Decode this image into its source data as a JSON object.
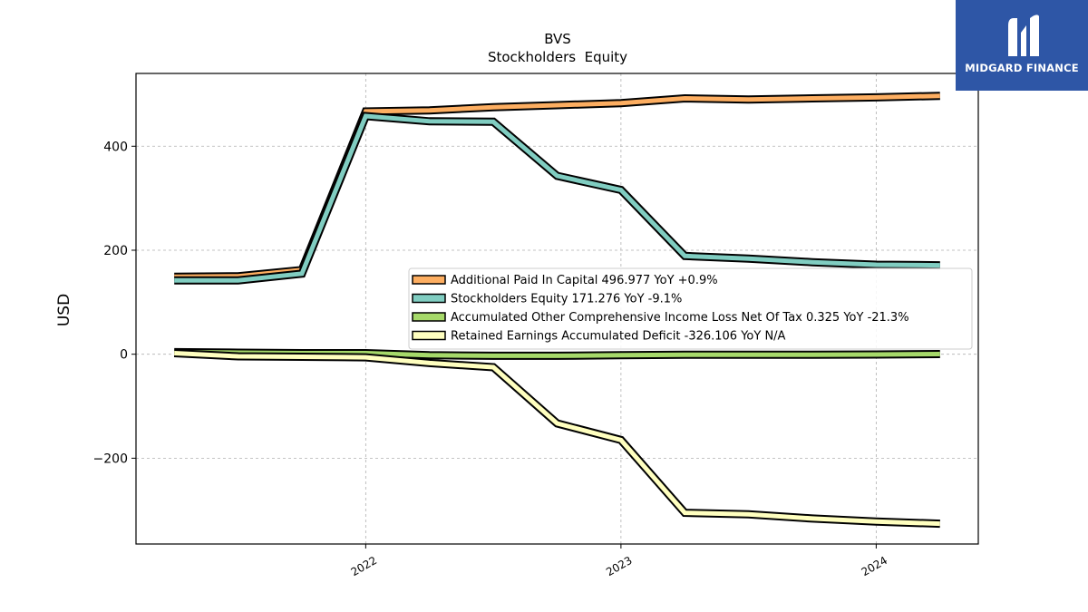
{
  "chart_data": {
    "type": "line",
    "title": "BVS",
    "subtitle": "Stockholders  Equity",
    "ylabel": "USD",
    "xlabel": "",
    "ylim": [
      -365,
      540
    ],
    "xlim": [
      2021.1,
      2024.4
    ],
    "yticks": [
      -200,
      0,
      200,
      400
    ],
    "xticks": [
      "2022",
      "2023",
      "2024"
    ],
    "grid": true,
    "legend_position": "center-right",
    "x": [
      2021.25,
      2021.5,
      2021.75,
      2022.0,
      2022.25,
      2022.5,
      2022.75,
      2023.0,
      2023.25,
      2023.5,
      2023.75,
      2024.0,
      2024.25
    ],
    "series": [
      {
        "name": "Additional Paid In Capital",
        "legend": "Additional Paid In Capital  496.977 YoY +0.9%",
        "color": "#fdae61",
        "values": [
          149,
          150,
          162,
          467,
          469,
          475,
          479,
          483,
          492,
          490,
          492,
          494,
          497
        ]
      },
      {
        "name": "Stockholders Equity",
        "legend": "Stockholders Equity  171.276 YoY -9.1%",
        "color": "#80cdc1",
        "values": [
          142,
          142,
          155,
          458,
          448,
          447,
          343,
          316,
          189,
          184,
          177,
          172,
          171
        ]
      },
      {
        "name": "Accumulated Other Comprehensive Income Loss Net Of Tax",
        "legend": "Accumulated Other Comprehensive Income Loss Net Of Tax  0.325 YoY -21.3%",
        "color": "#a6d96a",
        "values": [
          4,
          3,
          2,
          2,
          -2,
          -3,
          -3,
          -2,
          -1,
          -1,
          -1,
          -0.5,
          0.3
        ]
      },
      {
        "name": "Retained Earnings Accumulated Deficit",
        "legend": "Retained Earnings Accumulated Deficit  -326.106 YoY N/A",
        "color": "#ffffbf",
        "values": [
          2,
          -4,
          -5,
          -6,
          -17,
          -25,
          -133,
          -165,
          -305,
          -308,
          -316,
          -322,
          -326
        ]
      }
    ]
  },
  "logo": {
    "text": "MIDGARD FINANCE",
    "background": "#2e56a6"
  }
}
